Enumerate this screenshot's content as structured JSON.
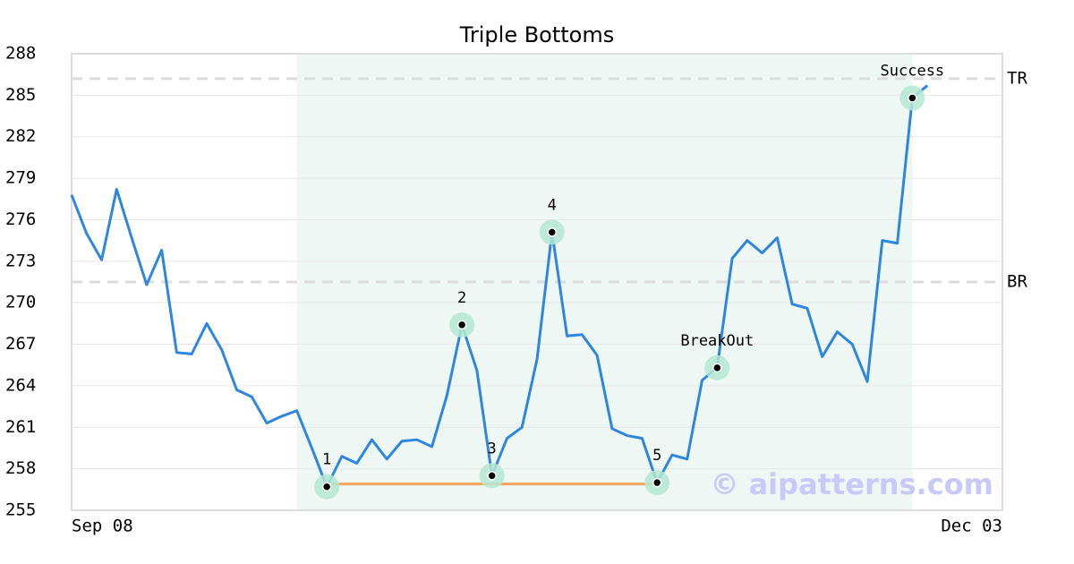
{
  "chart_data": {
    "type": "line",
    "title": "Triple Bottoms",
    "x": [
      0,
      1,
      2,
      3,
      4,
      5,
      6,
      7,
      8,
      9,
      10,
      11,
      12,
      13,
      14,
      15,
      16,
      17,
      18,
      19,
      20,
      21,
      22,
      23,
      24,
      25,
      26,
      27,
      28,
      29,
      30,
      31,
      32,
      33,
      34,
      35,
      36,
      37,
      38,
      39,
      40,
      41,
      42,
      43,
      44,
      45,
      46,
      47,
      48,
      49,
      50,
      51,
      52,
      53,
      54,
      55,
      56,
      57
    ],
    "series": [
      {
        "color": "#2e86de",
        "values": [
          277.8,
          275.0,
          273.1,
          278.2,
          274.7,
          271.3,
          273.8,
          266.4,
          266.3,
          268.5,
          266.6,
          263.7,
          263.2,
          261.3,
          261.8,
          262.2,
          259.5,
          256.7,
          258.9,
          258.4,
          260.1,
          258.7,
          260.0,
          260.1,
          259.6,
          263.3,
          268.4,
          265.1,
          257.5,
          260.2,
          261.0,
          265.9,
          275.1,
          267.6,
          267.7,
          266.2,
          260.9,
          260.4,
          260.2,
          257.0,
          259.0,
          258.7,
          264.4,
          265.3,
          273.2,
          274.5,
          273.6,
          274.7,
          269.9,
          269.6,
          266.1,
          267.9,
          267.0,
          264.3,
          274.5,
          274.3,
          284.8,
          285.7
        ]
      }
    ],
    "xlim": [
      0,
      62
    ],
    "xticks": [
      {
        "value": 0,
        "label": "Sep 08"
      },
      {
        "value": 62,
        "label": "Dec 03"
      }
    ],
    "ylim": [
      255,
      288
    ],
    "yticks": [
      255,
      258,
      261,
      264,
      267,
      270,
      273,
      276,
      279,
      282,
      285,
      288
    ],
    "grid": true,
    "pattern_range": [
      15,
      56
    ],
    "levels": [
      {
        "name": "TR",
        "value": 286.2
      },
      {
        "name": "BR",
        "value": 271.5
      }
    ],
    "support": {
      "x": [
        17,
        39
      ],
      "value": 256.9,
      "color": "#f4a460"
    },
    "annotations": [
      {
        "x": 17,
        "label": "1"
      },
      {
        "x": 26,
        "label": "2"
      },
      {
        "x": 28,
        "label": "3"
      },
      {
        "x": 32,
        "label": "4"
      },
      {
        "x": 39,
        "label": "5"
      },
      {
        "x": 43,
        "label": "BreakOut"
      },
      {
        "x": 56,
        "label": "Success"
      }
    ],
    "watermark": "© aipatterns.com"
  }
}
